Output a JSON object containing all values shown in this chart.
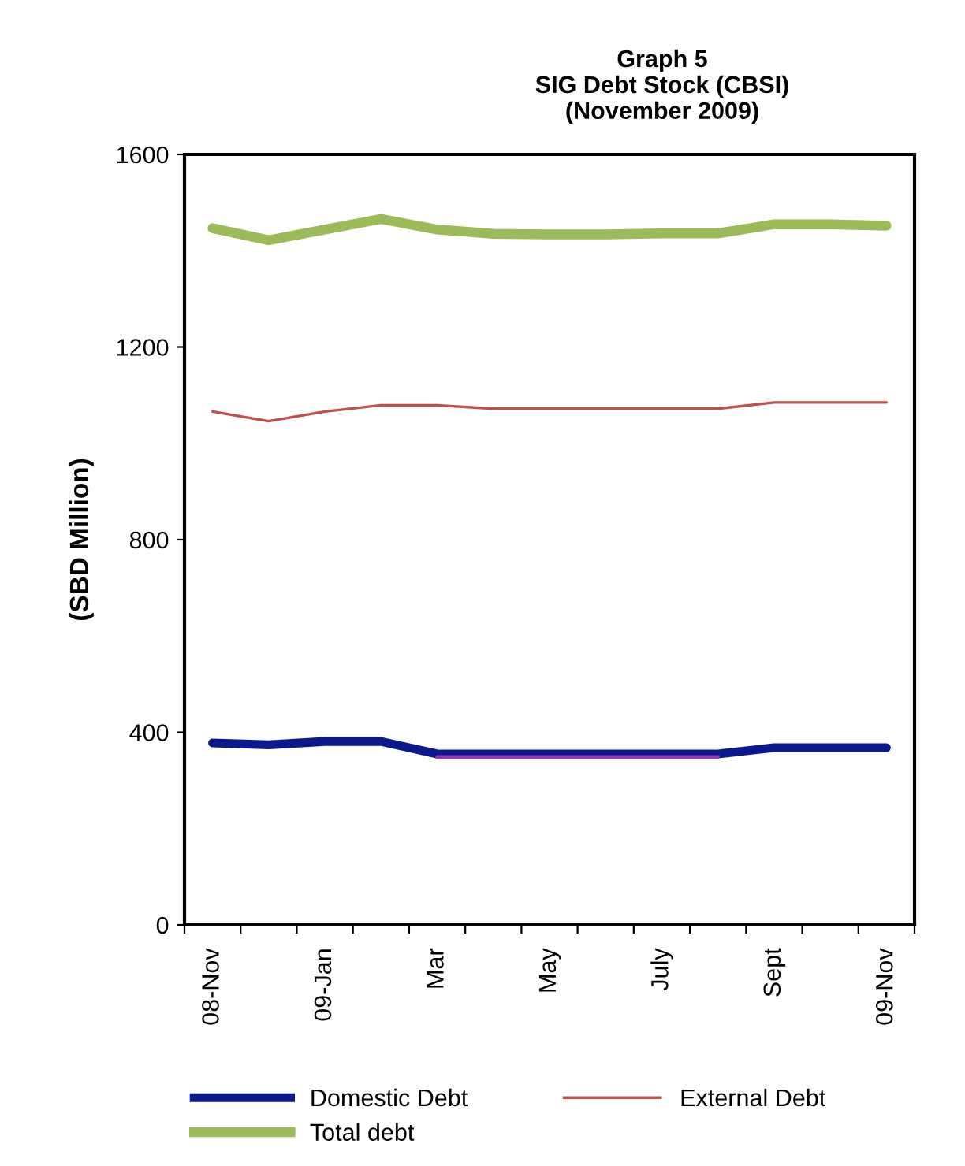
{
  "chart_data": {
    "type": "line",
    "title": "Graph 5\nSIG Debt Stock (CBSI)\n(November 2009)",
    "ylabel": "(SBD Million)",
    "categories": [
      "08-Nov",
      null,
      "09-Jan",
      null,
      "Mar",
      null,
      "May",
      null,
      "July",
      null,
      "Sept",
      null,
      "09-Nov"
    ],
    "series": [
      {
        "name": "Domestic Debt",
        "color": "#0a1a8c",
        "values": [
          378,
          374,
          381,
          381,
          355,
          355,
          355,
          355,
          355,
          355,
          368,
          368,
          368
        ]
      },
      {
        "color": "#9933cc",
        "values": [
          null,
          null,
          null,
          null,
          349,
          349,
          349,
          349,
          349,
          349,
          null,
          null,
          null
        ]
      },
      {
        "name": "External Debt",
        "color": "#c0504d",
        "values": [
          1066,
          1046,
          1066,
          1079,
          1079,
          1072,
          1072,
          1072,
          1072,
          1072,
          1085,
          1085,
          1085
        ]
      },
      {
        "name": "Total debt",
        "color": "#9bbb59",
        "values": [
          1447,
          1422,
          1444,
          1466,
          1444,
          1435,
          1434,
          1434,
          1436,
          1436,
          1455,
          1455,
          1452
        ]
      }
    ],
    "ylim": [
      0,
      1600
    ],
    "yticks": [
      0,
      400,
      800,
      1200,
      1600
    ],
    "grid": false,
    "legend": "bottom",
    "marker": "none",
    "line_style": "solid"
  }
}
